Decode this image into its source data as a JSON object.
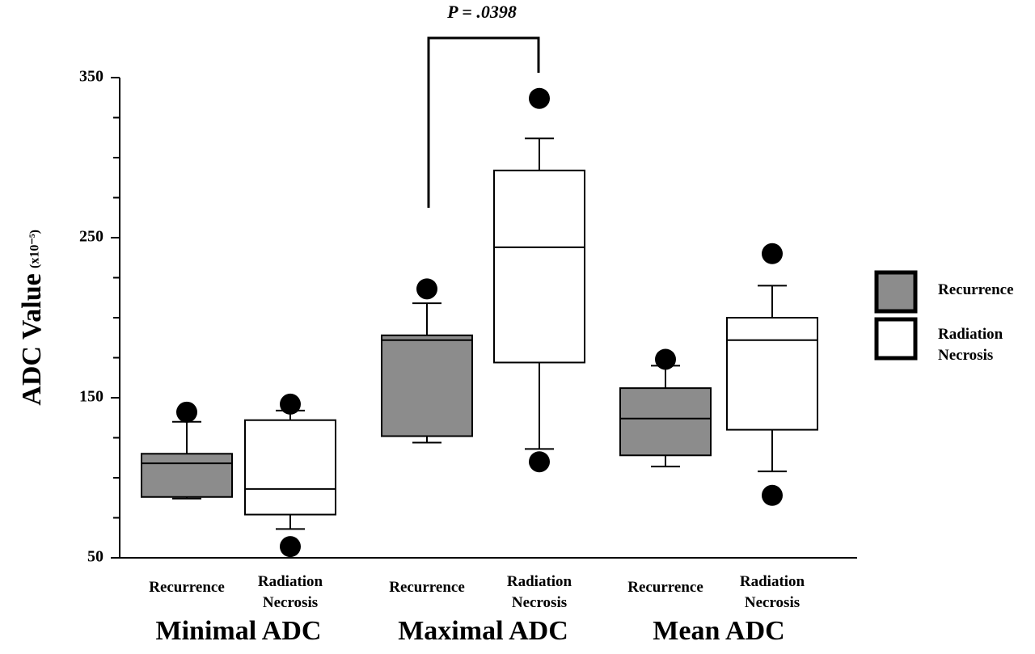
{
  "chart_data": {
    "type": "box",
    "y_label": "ADC Value",
    "y_label_unit": "(x10⁻⁵)",
    "categories": [
      "Minimal ADC",
      "Maximal ADC",
      "Mean ADC"
    ],
    "ylim": [
      50,
      350
    ],
    "yticks": [
      50,
      150,
      250,
      350
    ],
    "yminor_ticks": [
      75,
      100,
      125,
      175,
      200,
      225,
      275,
      300,
      325
    ],
    "annotation": "P = .0398",
    "series": [
      {
        "name": "Recurrence",
        "color": "#8c8c8c",
        "boxes": [
          {
            "whisker_low": 87,
            "q1": 88,
            "median": 109,
            "q3": 115,
            "whisker_high": 135,
            "outliers": [
              141
            ]
          },
          {
            "whisker_low": 122,
            "q1": 126,
            "median": 186,
            "q3": 189,
            "whisker_high": 209,
            "outliers": [
              218
            ]
          },
          {
            "whisker_low": 107,
            "q1": 114,
            "median": 137,
            "q3": 156,
            "whisker_high": 170,
            "outliers": [
              174
            ]
          }
        ]
      },
      {
        "name": "Radiation Necrosis",
        "color": "#ffffff",
        "boxes": [
          {
            "whisker_low": 68,
            "q1": 77,
            "median": 93,
            "q3": 136,
            "whisker_high": 142,
            "outliers": [
              146,
              57
            ]
          },
          {
            "whisker_low": 118,
            "q1": 172,
            "median": 244,
            "q3": 292,
            "whisker_high": 312,
            "outliers": [
              337,
              110
            ]
          },
          {
            "whisker_low": 104,
            "q1": 130,
            "median": 186,
            "q3": 200,
            "whisker_high": 220,
            "outliers": [
              240,
              89
            ]
          }
        ]
      }
    ]
  }
}
